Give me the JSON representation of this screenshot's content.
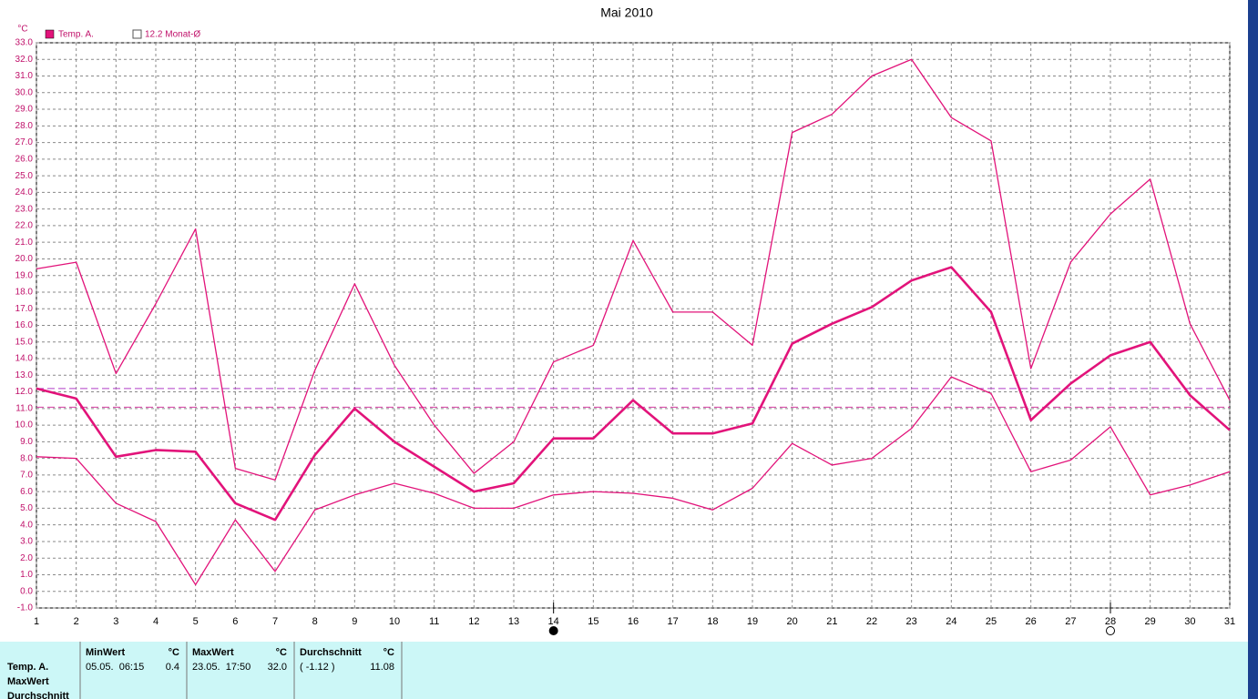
{
  "chart_data": {
    "type": "line",
    "title": "Mai 2010",
    "y_unit": "°C",
    "x": [
      1,
      2,
      3,
      4,
      5,
      6,
      7,
      8,
      9,
      10,
      11,
      12,
      13,
      14,
      15,
      16,
      17,
      18,
      19,
      20,
      21,
      22,
      23,
      24,
      25,
      26,
      27,
      28,
      29,
      30,
      31
    ],
    "xlim": [
      1,
      31
    ],
    "xticks": [
      1,
      2,
      3,
      4,
      5,
      6,
      7,
      8,
      9,
      10,
      11,
      12,
      13,
      14,
      15,
      16,
      17,
      18,
      19,
      20,
      21,
      22,
      23,
      24,
      25,
      26,
      27,
      28,
      29,
      30,
      31
    ],
    "ylim": [
      -1,
      33
    ],
    "yticks": [
      {
        "value": -1,
        "label": "-1.0"
      },
      {
        "value": 0,
        "label": "0.0"
      },
      {
        "value": 1,
        "label": "1.0"
      },
      {
        "value": 2,
        "label": "2.0"
      },
      {
        "value": 3,
        "label": "3.0"
      },
      {
        "value": 4,
        "label": "4.0"
      },
      {
        "value": 5,
        "label": "5.0"
      },
      {
        "value": 6,
        "label": "6.0"
      },
      {
        "value": 7,
        "label": "7.0"
      },
      {
        "value": 8,
        "label": "8.0"
      },
      {
        "value": 9,
        "label": "9.0"
      },
      {
        "value": 10,
        "label": "10.0"
      },
      {
        "value": 11,
        "label": "11.0"
      },
      {
        "value": 12,
        "label": "12.0"
      },
      {
        "value": 13,
        "label": "13.0"
      },
      {
        "value": 14,
        "label": "14.0"
      },
      {
        "value": 15,
        "label": "15.0"
      },
      {
        "value": 16,
        "label": "16.0"
      },
      {
        "value": 17,
        "label": "17.0"
      },
      {
        "value": 18,
        "label": "18.0"
      },
      {
        "value": 19,
        "label": "19.0"
      },
      {
        "value": 20,
        "label": "20.0"
      },
      {
        "value": 21,
        "label": "21.0"
      },
      {
        "value": 22,
        "label": "22.0"
      },
      {
        "value": 23,
        "label": "23.0"
      },
      {
        "value": 24,
        "label": "24.0"
      },
      {
        "value": 25,
        "label": "25.0"
      },
      {
        "value": 26,
        "label": "26.0"
      },
      {
        "value": 27,
        "label": "27.0"
      },
      {
        "value": 28,
        "label": "28.0"
      },
      {
        "value": 29,
        "label": "29.0"
      },
      {
        "value": 30,
        "label": "30.0"
      },
      {
        "value": 31,
        "label": "31.0"
      },
      {
        "value": 32,
        "label": "32.0"
      },
      {
        "value": 33,
        "label": "33.0"
      }
    ],
    "grid": true,
    "series": [
      {
        "name": "Temp. A.",
        "color": "#e2137a",
        "values": [
          12.2,
          11.6,
          8.1,
          8.5,
          8.4,
          5.3,
          4.3,
          8.2,
          11.0,
          9.0,
          7.5,
          6.0,
          6.5,
          9.2,
          9.2,
          11.5,
          9.5,
          9.5,
          10.1,
          14.9,
          16.1,
          17.1,
          18.7,
          19.5,
          16.8,
          10.3,
          12.5,
          14.2,
          15.0,
          11.8,
          9.7
        ],
        "max": [
          19.4,
          19.8,
          13.1,
          17.3,
          21.8,
          7.4,
          6.7,
          13.3,
          18.5,
          13.6,
          10.0,
          7.1,
          9.0,
          13.8,
          14.8,
          21.1,
          16.8,
          16.8,
          14.8,
          27.6,
          28.7,
          31.0,
          32.0,
          28.5,
          27.1,
          13.4,
          19.8,
          22.7,
          24.8,
          16.1,
          11.5
        ],
        "min": [
          8.1,
          8.0,
          5.3,
          4.2,
          0.4,
          4.3,
          1.2,
          4.9,
          5.8,
          6.5,
          5.9,
          5.0,
          5.0,
          5.8,
          6.0,
          5.9,
          5.6,
          4.9,
          6.2,
          8.9,
          7.6,
          8.0,
          9.8,
          12.9,
          11.9,
          7.2,
          7.9,
          9.9,
          5.8,
          6.4,
          7.2
        ]
      }
    ],
    "reference_lines": [
      {
        "value": 12.2,
        "label": "12.2 Monat-Ø",
        "color": "#b03cc8"
      },
      {
        "value": 11.08,
        "color": "#d43ca0"
      }
    ],
    "moon_markers": [
      {
        "x": 14,
        "filled": true
      },
      {
        "x": 28,
        "filled": false
      }
    ]
  },
  "stats": {
    "row_labels": [
      "Temp. A.",
      "MaxWert",
      "Durchschnitt"
    ],
    "columns": [
      {
        "header": "MinWert",
        "unit": "°C",
        "cells": [
          "05.05.  06:15",
          "0.4"
        ]
      },
      {
        "header": "MaxWert",
        "unit": "°C",
        "cells": [
          "23.05.  17:50",
          "32.0"
        ]
      },
      {
        "header": "Durchschnitt",
        "unit": "°C",
        "cells": [
          "( -1.12 )",
          "11.08"
        ]
      }
    ]
  }
}
